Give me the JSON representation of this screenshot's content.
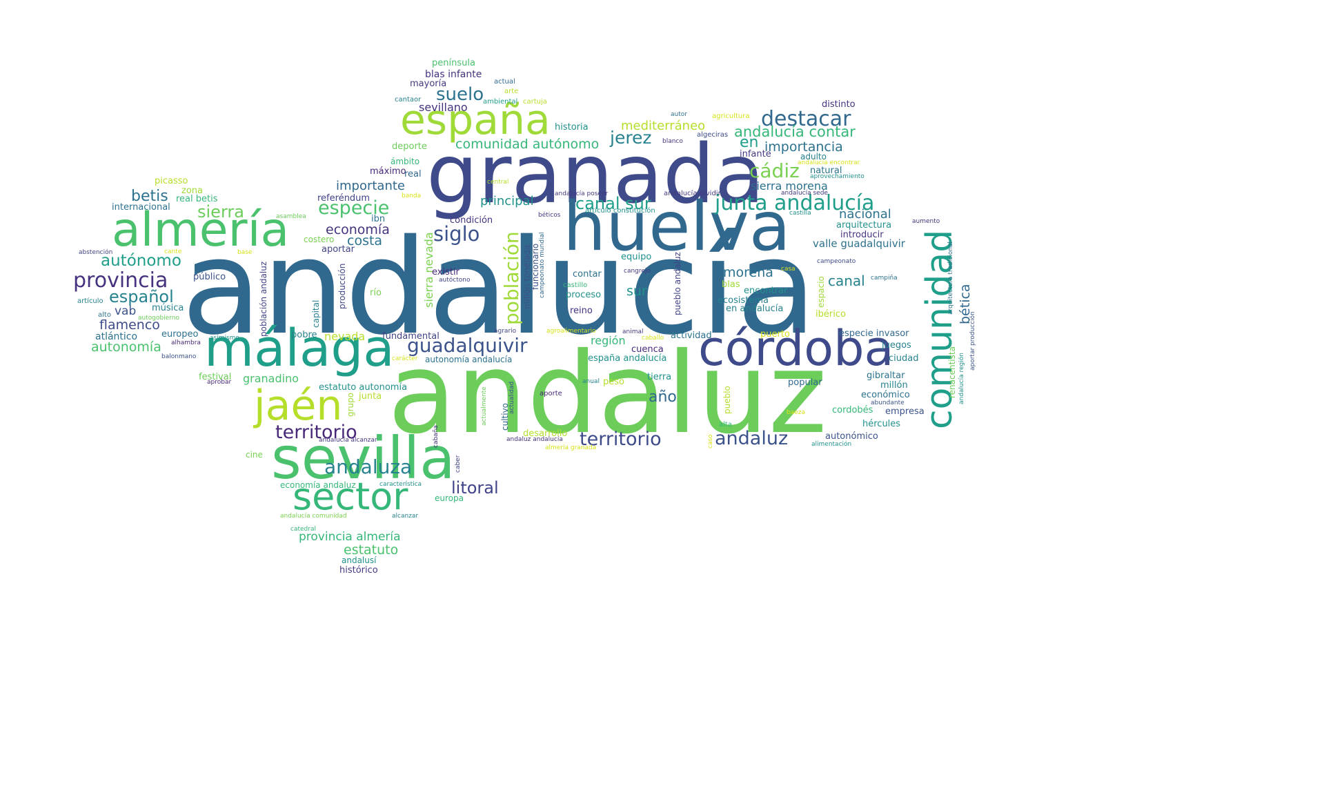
{
  "words": [
    {
      "text": "andalucía",
      "color": "#31688e"
    },
    {
      "text": "andaluz",
      "color": "#6ccd5a"
    },
    {
      "text": "granada",
      "color": "#3e4a89"
    },
    {
      "text": "huelva",
      "color": "#31688e"
    },
    {
      "text": "sevilla",
      "color": "#4ac16d"
    },
    {
      "text": "málaga",
      "color": "#1f9e89"
    },
    {
      "text": "córdoba",
      "color": "#3e4a89"
    },
    {
      "text": "almería",
      "color": "#4ac16d"
    },
    {
      "text": "españa",
      "color": "#a0da39"
    },
    {
      "text": "comunidad",
      "color": "#1f9e89"
    },
    {
      "text": "sector",
      "color": "#35b779"
    },
    {
      "text": "jaén",
      "color": "#b5de2b"
    },
    {
      "text": "junta andalucía",
      "color": "#1f9e89"
    },
    {
      "text": "provincia",
      "color": "#46327e"
    },
    {
      "text": "territorio",
      "color": "#482878"
    },
    {
      "text": "territorio",
      "color": "#3e4a89"
    },
    {
      "text": "andaluza",
      "color": "#26828e"
    },
    {
      "text": "guadalquivir",
      "color": "#3b528b"
    },
    {
      "text": "destacar",
      "color": "#31688e"
    },
    {
      "text": "población",
      "color": "#a0da39"
    },
    {
      "text": "andaluz",
      "color": "#3b528b"
    },
    {
      "text": "siglo",
      "color": "#3b528b"
    },
    {
      "text": "canal sur",
      "color": "#1f9e89"
    },
    {
      "text": "cádiz",
      "color": "#7ad151"
    },
    {
      "text": "jerez",
      "color": "#26828e"
    },
    {
      "text": "autónomo",
      "color": "#1f9e89"
    },
    {
      "text": "español",
      "color": "#26828e"
    },
    {
      "text": "especie",
      "color": "#4ac16d"
    },
    {
      "text": "suelo",
      "color": "#2c728e"
    },
    {
      "text": "litoral",
      "color": "#404387"
    },
    {
      "text": "sierra",
      "color": "#6ccd5a"
    },
    {
      "text": "betis",
      "color": "#2c728e"
    },
    {
      "text": "andalucía contar",
      "color": "#35b779"
    },
    {
      "text": "comunidad autónomo",
      "color": "#35b779"
    },
    {
      "text": "importancia",
      "color": "#2c728e"
    },
    {
      "text": "año",
      "color": "#31688e"
    },
    {
      "text": "estatuto",
      "color": "#4ac16d"
    },
    {
      "text": "provincia almería",
      "color": "#35b779"
    },
    {
      "text": "sevillano",
      "color": "#46327e"
    },
    {
      "text": "morena",
      "color": "#2c728e"
    },
    {
      "text": "bética",
      "color": "#31688e"
    },
    {
      "text": "canal",
      "color": "#26828e"
    },
    {
      "text": "mediterráneo",
      "color": "#b5de2b"
    },
    {
      "text": "en",
      "color": "#1f9e89"
    },
    {
      "text": "economía",
      "color": "#46327e"
    },
    {
      "text": "costa",
      "color": "#2c728e"
    },
    {
      "text": "importante",
      "color": "#31688e"
    },
    {
      "text": "flamenco",
      "color": "#3e4a89"
    },
    {
      "text": "autonomía",
      "color": "#4ac16d"
    },
    {
      "text": "principal",
      "color": "#21918c"
    },
    {
      "text": "nacional",
      "color": "#2c728e"
    },
    {
      "text": "sierra morena",
      "color": "#2c728e"
    },
    {
      "text": "sierra nevada",
      "color": "#7ad151"
    },
    {
      "text": "nevada",
      "color": "#b5de2b"
    },
    {
      "text": "granadino",
      "color": "#4ac16d"
    },
    {
      "text": "vab",
      "color": "#3b528b"
    },
    {
      "text": "región",
      "color": "#35b779"
    },
    {
      "text": "sur",
      "color": "#21918c"
    },
    {
      "text": "valle guadalquivir",
      "color": "#2c728e"
    },
    {
      "text": "península",
      "color": "#4ac16d"
    },
    {
      "text": "blas infante",
      "color": "#46327e"
    },
    {
      "text": "mayoría",
      "color": "#443983"
    },
    {
      "text": "actual",
      "color": "#31688e"
    },
    {
      "text": "arte",
      "color": "#b5de2b"
    },
    {
      "text": "cantaor",
      "color": "#26828e"
    },
    {
      "text": "ambiental",
      "color": "#1f9e89"
    },
    {
      "text": "cartuja",
      "color": "#b5de2b"
    },
    {
      "text": "distinto",
      "color": "#46327e"
    },
    {
      "text": "autor",
      "color": "#2c728e"
    },
    {
      "text": "agricultura",
      "color": "#d8e219"
    },
    {
      "text": "historia",
      "color": "#21918c"
    },
    {
      "text": "algeciras",
      "color": "#3e4a89"
    },
    {
      "text": "blanco",
      "color": "#46327e"
    },
    {
      "text": "deporte",
      "color": "#6ccd5a"
    },
    {
      "text": "infante",
      "color": "#443983"
    },
    {
      "text": "adulto",
      "color": "#26828e"
    },
    {
      "text": "ámbito",
      "color": "#35b779"
    },
    {
      "text": "máximo",
      "color": "#482878"
    },
    {
      "text": "real",
      "color": "#31688e"
    },
    {
      "text": "natural",
      "color": "#2c728e"
    },
    {
      "text": "andalucía encontrar",
      "color": "#d8e219"
    },
    {
      "text": "aprovechamiento",
      "color": "#21918c"
    },
    {
      "text": "central",
      "color": "#b5de2b"
    },
    {
      "text": "picasso",
      "color": "#b5de2b"
    },
    {
      "text": "zona",
      "color": "#a0da39"
    },
    {
      "text": "real betis",
      "color": "#35b779"
    },
    {
      "text": "internacional",
      "color": "#2c728e"
    },
    {
      "text": "referéndum",
      "color": "#404387"
    },
    {
      "text": "banda",
      "color": "#d8e219"
    },
    {
      "text": "andalucía poseer",
      "color": "#443983"
    },
    {
      "text": "andalucía sede",
      "color": "#443983"
    },
    {
      "text": "asamblea",
      "color": "#6ccd5a"
    },
    {
      "text": "ibn",
      "color": "#2c728e"
    },
    {
      "text": "condición",
      "color": "#46327e"
    },
    {
      "text": "béticos",
      "color": "#443983"
    },
    {
      "text": "castilla",
      "color": "#21918c"
    },
    {
      "text": "arquitectura",
      "color": "#21918c"
    },
    {
      "text": "aumento",
      "color": "#46327e"
    },
    {
      "text": "introducir",
      "color": "#46327e"
    },
    {
      "text": "costero",
      "color": "#7ad151"
    },
    {
      "text": "aportar",
      "color": "#404387"
    },
    {
      "text": "abstención",
      "color": "#404387"
    },
    {
      "text": "cante",
      "color": "#d8e219"
    },
    {
      "text": "base",
      "color": "#d8e219"
    },
    {
      "text": "producción",
      "color": "#404387"
    },
    {
      "text": "existir",
      "color": "#482878"
    },
    {
      "text": "autóctono",
      "color": "#404387"
    },
    {
      "text": "millón tonelada",
      "color": "#3b528b"
    },
    {
      "text": "funcionario",
      "color": "#3b528b"
    },
    {
      "text": "campeonato mundial",
      "color": "#31688e"
    },
    {
      "text": "pueblo andaluz",
      "color": "#404387"
    },
    {
      "text": "equipo",
      "color": "#21918c"
    },
    {
      "text": "contar",
      "color": "#2c728e"
    },
    {
      "text": "cangrejo",
      "color": "#443983"
    },
    {
      "text": "campeonato",
      "color": "#3e4a89"
    },
    {
      "text": "casa",
      "color": "#d8e219"
    },
    {
      "text": "campiña",
      "color": "#2c728e"
    },
    {
      "text": "espacio",
      "color": "#a0da39"
    },
    {
      "text": "arquitectura tradicional",
      "color": "#2c728e"
    },
    {
      "text": "aportar producción",
      "color": "#3b528b"
    },
    {
      "text": "andalucía región",
      "color": "#21918c"
    },
    {
      "text": "renacentista",
      "color": "#6ccd5a"
    },
    {
      "text": "público",
      "color": "#3b528b"
    },
    {
      "text": "artículo",
      "color": "#26828e"
    },
    {
      "text": "música",
      "color": "#26828e"
    },
    {
      "text": "alto",
      "color": "#2c728e"
    },
    {
      "text": "autogobierno",
      "color": "#6ccd5a"
    },
    {
      "text": "atlántico",
      "color": "#2c728e"
    },
    {
      "text": "población andaluz",
      "color": "#404387"
    },
    {
      "text": "capital",
      "color": "#26828e"
    },
    {
      "text": "río",
      "color": "#7ad151"
    },
    {
      "text": "castillo",
      "color": "#35b779"
    },
    {
      "text": "proceso",
      "color": "#21918c"
    },
    {
      "text": "reino",
      "color": "#46327e"
    },
    {
      "text": "blas",
      "color": "#a0da39"
    },
    {
      "text": "encontrar",
      "color": "#21918c"
    },
    {
      "text": "ecosistema",
      "color": "#26828e"
    },
    {
      "text": "en andalucía",
      "color": "#26828e"
    },
    {
      "text": "ibérico",
      "color": "#b5de2b"
    },
    {
      "text": "europeo",
      "color": "#2c728e"
    },
    {
      "text": "alhambra",
      "color": "#482878"
    },
    {
      "text": "asimismo",
      "color": "#21918c"
    },
    {
      "text": "pobre",
      "color": "#26828e"
    },
    {
      "text": "fundamental",
      "color": "#404387"
    },
    {
      "text": "agrario",
      "color": "#404387"
    },
    {
      "text": "agroalimentario",
      "color": "#d8e219"
    },
    {
      "text": "animal",
      "color": "#443983"
    },
    {
      "text": "caballo",
      "color": "#d8e219"
    },
    {
      "text": "actividad",
      "color": "#2c728e"
    },
    {
      "text": "puerto",
      "color": "#d8e219"
    },
    {
      "text": "especie invasor",
      "color": "#31688e"
    },
    {
      "text": "juegos",
      "color": "#26828e"
    },
    {
      "text": "balonmano",
      "color": "#3b528b"
    },
    {
      "text": "carácter",
      "color": "#d8e219"
    },
    {
      "text": "autonomía andalucía",
      "color": "#2c728e"
    },
    {
      "text": "cuenca",
      "color": "#482878"
    },
    {
      "text": "españa andalucía",
      "color": "#21918c"
    },
    {
      "text": "ciudad",
      "color": "#26828e"
    },
    {
      "text": "festival",
      "color": "#6ccd5a"
    },
    {
      "text": "aprobar",
      "color": "#482878"
    },
    {
      "text": "estatuto autonomía",
      "color": "#21918c"
    },
    {
      "text": "actualidad",
      "color": "#3b528b"
    },
    {
      "text": "anual",
      "color": "#26828e"
    },
    {
      "text": "peso",
      "color": "#b5de2b"
    },
    {
      "text": "tierra",
      "color": "#21918c"
    },
    {
      "text": "gibraltar",
      "color": "#2c728e"
    },
    {
      "text": "popular",
      "color": "#31688e"
    },
    {
      "text": "millón",
      "color": "#26828e"
    },
    {
      "text": "económico",
      "color": "#2c728e"
    },
    {
      "text": "abundante",
      "color": "#3b528b"
    },
    {
      "text": "aporte",
      "color": "#482878"
    },
    {
      "text": "pueblo",
      "color": "#b5de2b"
    },
    {
      "text": "grupo",
      "color": "#a0da39"
    },
    {
      "text": "junta",
      "color": "#b5de2b"
    },
    {
      "text": "actualmente",
      "color": "#6ccd5a"
    },
    {
      "text": "baeza",
      "color": "#d8e219"
    },
    {
      "text": "cordobés",
      "color": "#35b779"
    },
    {
      "text": "empresa",
      "color": "#3b528b"
    },
    {
      "text": "alta",
      "color": "#35b779"
    },
    {
      "text": "hércules",
      "color": "#21918c"
    },
    {
      "text": "andalucía alcanzar",
      "color": "#443983"
    },
    {
      "text": "cultivo",
      "color": "#31688e"
    },
    {
      "text": "desarrollo",
      "color": "#b5de2b"
    },
    {
      "text": "andaluz andalucía",
      "color": "#46327e"
    },
    {
      "text": "cabaña",
      "color": "#46327e"
    },
    {
      "text": "caso",
      "color": "#d8e219"
    },
    {
      "text": "autonómico",
      "color": "#3b528b"
    },
    {
      "text": "alimentación",
      "color": "#21918c"
    },
    {
      "text": "cine",
      "color": "#7ad151"
    },
    {
      "text": "almería granada",
      "color": "#d8e219"
    },
    {
      "text": "caber",
      "color": "#404387"
    },
    {
      "text": "economía andaluz",
      "color": "#35b779"
    },
    {
      "text": "característica",
      "color": "#21918c"
    },
    {
      "text": "europa",
      "color": "#35b779"
    },
    {
      "text": "andalucía comunidad",
      "color": "#7ad151"
    },
    {
      "text": "alcanzar",
      "color": "#26828e"
    },
    {
      "text": "catedral",
      "color": "#35b779"
    },
    {
      "text": "andalusí",
      "color": "#21918c"
    },
    {
      "text": "histórico",
      "color": "#443983"
    },
    {
      "text": "artículo constitución",
      "color": "#21918c"
    },
    {
      "text": "andalucía dividir",
      "color": "#443983"
    }
  ]
}
